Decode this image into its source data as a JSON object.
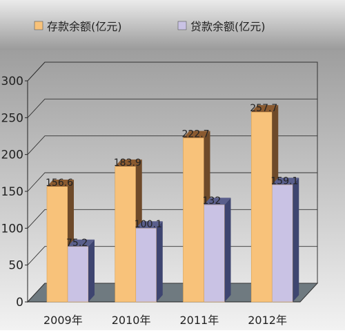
{
  "chart_data": {
    "type": "bar",
    "categories": [
      "2009年",
      "2010年",
      "2011年",
      "2012年"
    ],
    "series": [
      {
        "name": "存款余额(亿元)",
        "values": [
          156.6,
          183.9,
          222.7,
          257.7
        ],
        "labels": [
          "156.6",
          "183.9",
          "222.7",
          "257.7"
        ],
        "color": "#f8c27a"
      },
      {
        "name": "贷款余额(亿元)",
        "values": [
          75.2,
          100.1,
          132,
          159.1
        ],
        "labels": [
          "75.2",
          "100.1",
          "132",
          "159.1"
        ],
        "color": "#c9c2e4"
      }
    ],
    "ylim": [
      0,
      300
    ],
    "yticks": [
      0,
      50,
      100,
      150,
      200,
      250,
      300
    ],
    "grid": true,
    "legend": "top",
    "style": "3d"
  }
}
